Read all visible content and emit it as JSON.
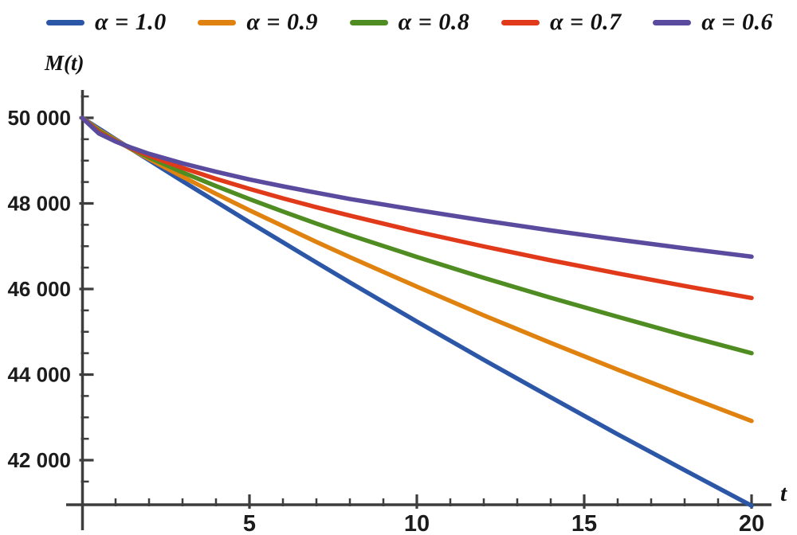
{
  "page": {
    "background": "#ffffff",
    "text_color": "#121212",
    "axis_color": "#3d3d3d"
  },
  "legend": {
    "position": "top",
    "items": [
      {
        "label": "α = 1.0",
        "color": "#2c57a7"
      },
      {
        "label": "α = 0.9",
        "color": "#e0820f"
      },
      {
        "label": "α = 0.8",
        "color": "#4f8c22"
      },
      {
        "label": "α = 0.7",
        "color": "#e13a1b"
      },
      {
        "label": "α = 0.6",
        "color": "#5a4b9e"
      }
    ]
  },
  "chart_data": {
    "type": "line",
    "title": "",
    "xlabel": "t",
    "ylabel": "M(t)",
    "xlim": [
      0,
      20.6
    ],
    "ylim": [
      41000,
      50600
    ],
    "grid": false,
    "legend_position": "top",
    "x_major_ticks": [
      5,
      10,
      15,
      20
    ],
    "x_major_tick_labels": [
      "5",
      "10",
      "15",
      "20"
    ],
    "x_minor_tick_step": 1,
    "y_major_ticks": [
      50000,
      48000,
      46000,
      44000,
      42000
    ],
    "y_major_tick_labels": [
      "50 000",
      "48 000",
      "46 000",
      "44 000",
      "42 000"
    ],
    "y_minor_tick_step": 500,
    "x": [
      0,
      0.5,
      1,
      1.5,
      2,
      3,
      4,
      5,
      6,
      7,
      8,
      10,
      12,
      14,
      16,
      18,
      20
    ],
    "series": [
      {
        "name": "α = 1.0",
        "color": "#2c57a7",
        "values": [
          50000,
          49750,
          49500,
          49255,
          49010,
          48520,
          48040,
          47560,
          47090,
          46620,
          46155,
          45240,
          44345,
          43470,
          42605,
          41765,
          40935
        ]
      },
      {
        "name": "α = 0.9",
        "color": "#e0820f",
        "values": [
          50000,
          49720,
          49485,
          49255,
          49040,
          48625,
          48225,
          47840,
          47470,
          47100,
          46745,
          46055,
          45385,
          44740,
          44115,
          43510,
          42915
        ]
      },
      {
        "name": "α = 0.8",
        "color": "#4f8c22",
        "values": [
          50000,
          49695,
          49465,
          49265,
          49075,
          48725,
          48405,
          48100,
          47810,
          47530,
          47260,
          46750,
          46260,
          45795,
          45350,
          44915,
          44500
        ]
      },
      {
        "name": "α = 0.7",
        "color": "#e13a1b",
        "values": [
          50000,
          49665,
          49455,
          49275,
          49115,
          48830,
          48575,
          48340,
          48120,
          47910,
          47715,
          47340,
          46995,
          46670,
          46365,
          46070,
          45790
        ]
      },
      {
        "name": "α = 0.6",
        "color": "#5a4b9e",
        "values": [
          50000,
          49635,
          49445,
          49295,
          49160,
          48935,
          48740,
          48560,
          48400,
          48250,
          48105,
          47845,
          47600,
          47370,
          47155,
          46950,
          46755
        ]
      }
    ]
  }
}
